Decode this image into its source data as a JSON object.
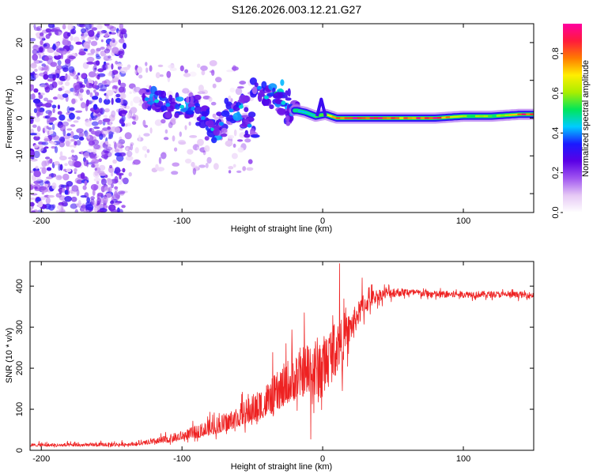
{
  "title": "S126.2026.003.12.21.G27",
  "colors": {
    "snr_line": "#ee2222",
    "background": "#ffffff",
    "scale": [
      "#ffffff",
      "#e6c8f5",
      "#a055f0",
      "#5a00e6",
      "#1a1aff",
      "#00ccff",
      "#00e65a",
      "#aaee00",
      "#ffee00",
      "#ff7a00",
      "#ff1a3c",
      "#ff00a0"
    ]
  },
  "chart_data": [
    {
      "type": "heatmap",
      "name": "spectrogram",
      "xlabel": "Height of straight line (km)",
      "ylabel": "Frequency (Hz)",
      "xlim": [
        -208,
        150
      ],
      "ylim": [
        -25,
        25
      ],
      "xticks": [
        -200,
        -100,
        0,
        100
      ],
      "yticks": [
        -20,
        -10,
        0,
        10,
        20
      ],
      "colorbar": {
        "label": "Normalized spectral amplitude",
        "range": [
          0,
          0.95
        ],
        "ticks": [
          0.0,
          0.2,
          0.4,
          0.6,
          0.8
        ]
      },
      "tone_band": {
        "x_start": -20,
        "x_end": 150,
        "frequency": 0.5,
        "segments": [
          {
            "x": -18,
            "f": 2.0,
            "level": 0.45
          },
          {
            "x": -12,
            "f": 1.5,
            "level": 0.5
          },
          {
            "x": -5,
            "f": 0.5,
            "level": 0.55
          },
          {
            "x": 2,
            "f": 1.0,
            "level": 0.8
          },
          {
            "x": 10,
            "f": 0.0,
            "level": 0.75
          },
          {
            "x": 20,
            "f": 0.0,
            "level": 0.9
          },
          {
            "x": 40,
            "f": 0.0,
            "level": 0.85
          },
          {
            "x": 60,
            "f": 0.0,
            "level": 0.8
          },
          {
            "x": 80,
            "f": 0.0,
            "level": 0.9
          },
          {
            "x": 100,
            "f": 0.5,
            "level": 0.6
          },
          {
            "x": 120,
            "f": 0.5,
            "level": 0.55
          },
          {
            "x": 140,
            "f": 1.0,
            "level": 0.85
          }
        ]
      },
      "scatter_regions": [
        {
          "x_min": -208,
          "x_max": -140,
          "f_min": -25,
          "f_max": 25,
          "level": 0.25
        },
        {
          "x_min": -140,
          "x_max": -50,
          "f_min": -15,
          "f_max": 15,
          "level": 0.15
        }
      ],
      "blobs": [
        {
          "x": -125,
          "f": 5.0,
          "level": 0.3
        },
        {
          "x": -118,
          "f": 4.5,
          "level": 0.35
        },
        {
          "x": -110,
          "f": 3.5,
          "level": 0.3
        },
        {
          "x": -100,
          "f": 3.0,
          "level": 0.35
        },
        {
          "x": -92,
          "f": 2.5,
          "level": 0.3
        },
        {
          "x": -85,
          "f": 0.0,
          "level": 0.3
        },
        {
          "x": -78,
          "f": -3.0,
          "level": 0.35
        },
        {
          "x": -72,
          "f": -1.5,
          "level": 0.3
        },
        {
          "x": -65,
          "f": 2.0,
          "level": 0.3
        },
        {
          "x": -58,
          "f": 3.0,
          "level": 0.35
        },
        {
          "x": -52,
          "f": -2.0,
          "level": 0.3
        },
        {
          "x": -45,
          "f": 8.0,
          "level": 0.3
        },
        {
          "x": -40,
          "f": 5.5,
          "level": 0.35
        },
        {
          "x": -33,
          "f": 6.5,
          "level": 0.4
        },
        {
          "x": -28,
          "f": 4.0,
          "level": 0.35
        },
        {
          "x": -22,
          "f": 1.0,
          "level": 0.3
        }
      ]
    },
    {
      "type": "line",
      "name": "snr",
      "xlabel": "Height of straight line (km)",
      "ylabel": "SNR (10 * v/v)",
      "xlim": [
        -208,
        150
      ],
      "ylim": [
        0,
        460
      ],
      "xticks": [
        -200,
        -100,
        0,
        100
      ],
      "yticks": [
        0,
        100,
        200,
        300,
        400
      ],
      "profile": {
        "x": [
          -208,
          -180,
          -150,
          -130,
          -110,
          -90,
          -70,
          -50,
          -35,
          -25,
          -15,
          -8,
          0,
          5,
          10,
          15,
          20,
          25,
          30,
          35,
          40,
          45,
          50,
          60,
          80,
          100,
          120,
          150
        ],
        "y": [
          12,
          12,
          13,
          15,
          25,
          40,
          60,
          90,
          120,
          150,
          170,
          190,
          200,
          230,
          250,
          270,
          300,
          330,
          355,
          370,
          378,
          382,
          385,
          385,
          380,
          380,
          380,
          378
        ]
      },
      "noise_amplitude": {
        "x": [
          -208,
          -130,
          -100,
          -60,
          -30,
          -10,
          0,
          10,
          20,
          40,
          60,
          150
        ],
        "y": [
          8,
          10,
          25,
          60,
          110,
          150,
          130,
          110,
          60,
          25,
          15,
          12
        ]
      },
      "peaks": [
        {
          "x": -13,
          "y": 335
        },
        {
          "x": 12,
          "y": 455
        },
        {
          "x": 14,
          "y": 145
        },
        {
          "x": 28,
          "y": 420
        }
      ]
    }
  ]
}
